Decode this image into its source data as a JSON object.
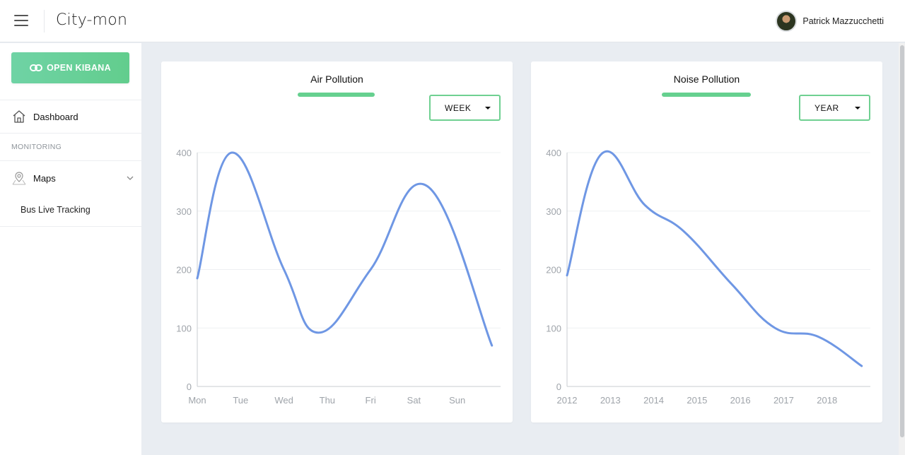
{
  "header": {
    "app_title": "City-mon",
    "user_name": "Patrick Mazzucchetti"
  },
  "sidebar": {
    "kibana_button": "OPEN KIBANA",
    "dashboard_label": "Dashboard",
    "section_label": "MONITORING",
    "maps_label": "Maps",
    "bus_tracking_label": "Bus Live Tracking"
  },
  "colors": {
    "accent_green": "#66d08f",
    "line_blue": "#6f97e4"
  },
  "icons": [
    "menu-icon",
    "link-icon",
    "home-icon",
    "map-pin-icon",
    "chevron-down-icon",
    "caret-down-icon"
  ],
  "cards": [
    {
      "title": "Air Pollution",
      "range_selected": "WEEK"
    },
    {
      "title": "Noise Pollution",
      "range_selected": "YEAR"
    }
  ],
  "chart_data": [
    {
      "type": "line",
      "title": "Air Pollution",
      "categories": [
        "Mon",
        "Tue",
        "Wed",
        "Thu",
        "Fri",
        "Sat",
        "Sun"
      ],
      "x": [
        0,
        0.8,
        2,
        2.8,
        4,
        5.3,
        6.8
      ],
      "values": [
        185,
        400,
        200,
        92,
        200,
        343,
        70
      ],
      "ylim": [
        0,
        400
      ],
      "yticks": [
        0,
        100,
        200,
        300,
        400
      ],
      "grid": true,
      "legend": "none"
    },
    {
      "type": "line",
      "title": "Noise Pollution",
      "categories": [
        "2012",
        "2013",
        "2014",
        "2015",
        "2016",
        "2017",
        "2018"
      ],
      "x": [
        0,
        0.8,
        1.8,
        2.7,
        3.8,
        4.8,
        5.8,
        6.8
      ],
      "values": [
        190,
        398,
        310,
        265,
        175,
        100,
        85,
        35
      ],
      "ylim": [
        0,
        400
      ],
      "yticks": [
        0,
        100,
        200,
        300,
        400
      ],
      "grid": true,
      "legend": "none"
    }
  ]
}
